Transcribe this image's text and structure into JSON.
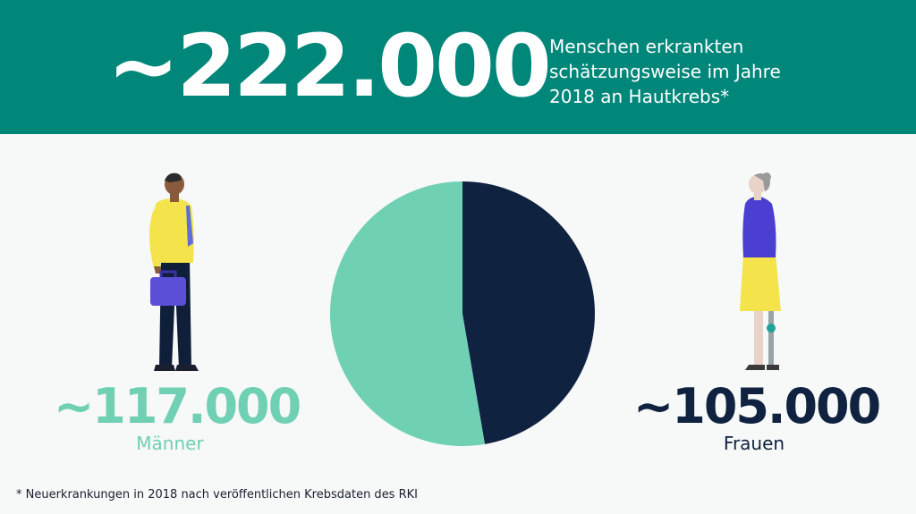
{
  "header": {
    "big_number": "~222.000",
    "subtitle_lines": [
      "Menschen erkrankten",
      "schätzungsweise im Jahre",
      "2018 an Hautkrebs*"
    ]
  },
  "men": {
    "value_label": "~117.000",
    "label": "Männer",
    "color": "#6fd0b3"
  },
  "women": {
    "value_label": "~105.000",
    "label": "Frauen",
    "color": "#0f2240"
  },
  "footnote": "* Neuerkrankungen in 2018 nach veröffentlichen Krebsdaten des RKI",
  "colors": {
    "banner": "#00877a",
    "background": "#f7f8f8"
  },
  "chart_data": {
    "type": "pie",
    "title": "",
    "slices": [
      {
        "label": "Frauen",
        "value": 105000,
        "color": "#0f2240"
      },
      {
        "label": "Männer",
        "value": 117000,
        "color": "#6fd0b3"
      }
    ]
  }
}
